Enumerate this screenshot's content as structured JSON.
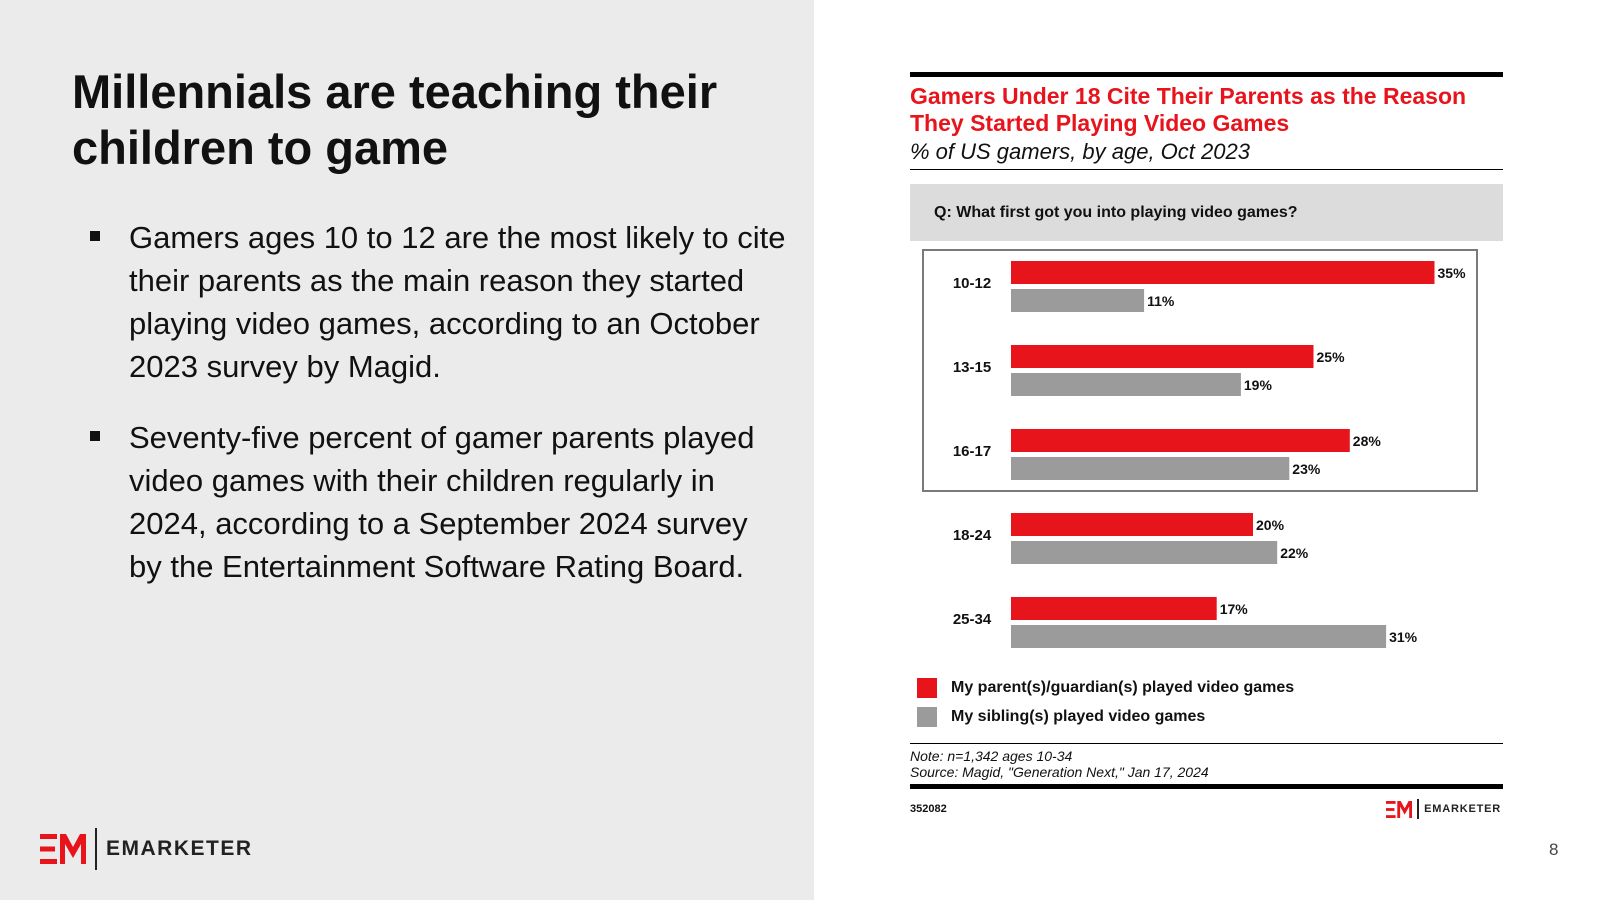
{
  "slide": {
    "title": "Millennials are teaching their children to game",
    "bullets": [
      "Gamers ages 10 to 12 are the most likely to cite their parents as the main reason they started playing video games, according to an October 2023 survey by Magid.",
      "Seventy-five percent of gamer parents played video games with their children regularly in 2024, according to a September 2024 survey by the Entertainment Software Rating Board."
    ],
    "page_number": "8"
  },
  "brand": {
    "name": "EMARKETER",
    "accent_color": "#e8141c"
  },
  "chart_data": {
    "type": "bar",
    "orientation": "horizontal",
    "title": "Gamers Under 18 Cite Their Parents as the Reason They Started Playing Video Games",
    "subtitle": "% of US gamers, by age, Oct 2023",
    "question": "Q: What first got you into playing video games?",
    "categories": [
      "10-12",
      "13-15",
      "16-17",
      "18-24",
      "25-34"
    ],
    "highlighted_categories": [
      "10-12",
      "13-15",
      "16-17"
    ],
    "series": [
      {
        "name": "My parent(s)/guardian(s) played video games",
        "color": "#e8141c",
        "values": [
          35,
          25,
          28,
          20,
          17
        ]
      },
      {
        "name": "My sibling(s) played video games",
        "color": "#9b9b9b",
        "values": [
          11,
          19,
          23,
          22,
          31
        ]
      }
    ],
    "value_suffix": "%",
    "xlim": [
      0,
      35
    ],
    "grid": false,
    "legend_position": "bottom-left",
    "note": "Note: n=1,342 ages 10-34",
    "source": "Source: Magid, \"Generation Next,\" Jan 17, 2024",
    "chart_id": "352082"
  }
}
